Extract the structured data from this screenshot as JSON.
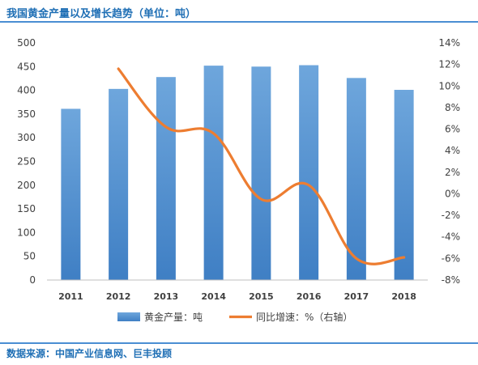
{
  "title": "我国黄金产量以及增长趋势（单位：吨）",
  "source": "数据来源：中国产业信息网、巨丰投顾",
  "chart_data": {
    "type": "bar+line",
    "categories": [
      "2011",
      "2012",
      "2013",
      "2014",
      "2015",
      "2016",
      "2017",
      "2018"
    ],
    "series": [
      {
        "name": "黄金产量：吨",
        "type": "bar",
        "axis": "left",
        "values": [
          361,
          403,
          428,
          452,
          450,
          453,
          426,
          401
        ],
        "color": "#5b9bd5"
      },
      {
        "name": "同比增速：%（右轴）",
        "type": "line",
        "axis": "right",
        "values": [
          null,
          11.6,
          6.2,
          5.6,
          -0.5,
          0.8,
          -6.0,
          -5.9
        ],
        "color": "#ed7d31"
      }
    ],
    "left_axis": {
      "ylim": [
        0,
        500
      ],
      "ticks": [
        "0",
        "50",
        "100",
        "150",
        "200",
        "250",
        "300",
        "350",
        "400",
        "450",
        "500"
      ]
    },
    "right_axis": {
      "ylim": [
        -8,
        14
      ],
      "ticks": [
        "-8%",
        "-6%",
        "-4%",
        "-2%",
        "0%",
        "2%",
        "4%",
        "6%",
        "8%",
        "10%",
        "12%",
        "14%"
      ]
    },
    "grid": false,
    "legend_position": "bottom"
  }
}
